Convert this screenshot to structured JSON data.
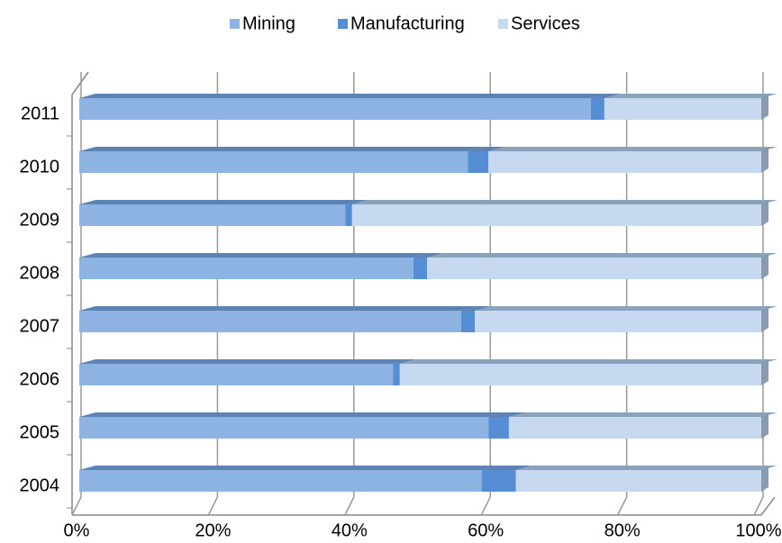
{
  "chart_data": {
    "type": "stacked-bar-horizontal",
    "categories": [
      "2004",
      "2005",
      "2006",
      "2007",
      "2008",
      "2009",
      "2010",
      "2011"
    ],
    "series": [
      {
        "name": "Mining",
        "color": "#8db3e2",
        "values": [
          59,
          60,
          46,
          56,
          49,
          39,
          57,
          75
        ]
      },
      {
        "name": "Manufacturing",
        "color": "#558ed5",
        "values": [
          5,
          3,
          1,
          2,
          2,
          1,
          3,
          2
        ]
      },
      {
        "name": "Services",
        "color": "#c6d9f1",
        "values": [
          36,
          37,
          53,
          42,
          49,
          60,
          40,
          23
        ]
      }
    ],
    "xlim": [
      0,
      100
    ],
    "xticks": [
      {
        "value": 0,
        "label": "0%"
      },
      {
        "value": 20,
        "label": "20%"
      },
      {
        "value": 40,
        "label": "40%"
      },
      {
        "value": 60,
        "label": "60%"
      },
      {
        "value": 80,
        "label": "80%"
      },
      {
        "value": 100,
        "label": "100%"
      }
    ],
    "grid": true,
    "legend": "top"
  }
}
